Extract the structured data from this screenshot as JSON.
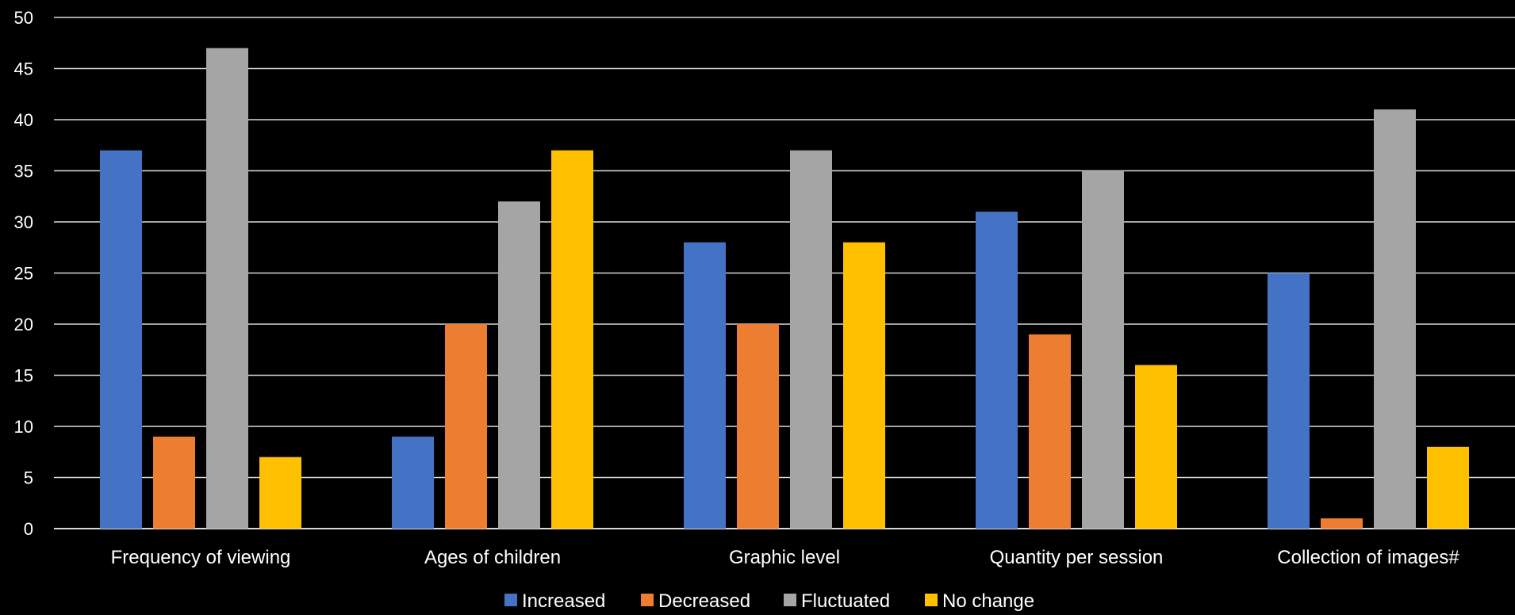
{
  "chart_data": {
    "type": "bar",
    "title": "",
    "xlabel": "",
    "ylabel": "",
    "categories": [
      "Frequency of viewing",
      "Ages of children",
      "Graphic level",
      "Quantity per session",
      "Collection of images#"
    ],
    "series": [
      {
        "name": "Increased",
        "color": "#4472c4",
        "values": [
          37,
          9,
          28,
          31,
          25
        ]
      },
      {
        "name": "Decreased",
        "color": "#ed7d31",
        "values": [
          9,
          20,
          20,
          19,
          1
        ]
      },
      {
        "name": "Fluctuated",
        "color": "#a5a5a5",
        "values": [
          47,
          32,
          37,
          35,
          41
        ]
      },
      {
        "name": "No change",
        "color": "#ffc000",
        "values": [
          7,
          37,
          28,
          16,
          8
        ]
      }
    ],
    "ylim": [
      0,
      50
    ],
    "yticks": [
      0,
      5,
      10,
      15,
      20,
      25,
      30,
      35,
      40,
      45,
      50
    ],
    "grid": true,
    "legend_position": "bottom",
    "background": "#000000"
  }
}
